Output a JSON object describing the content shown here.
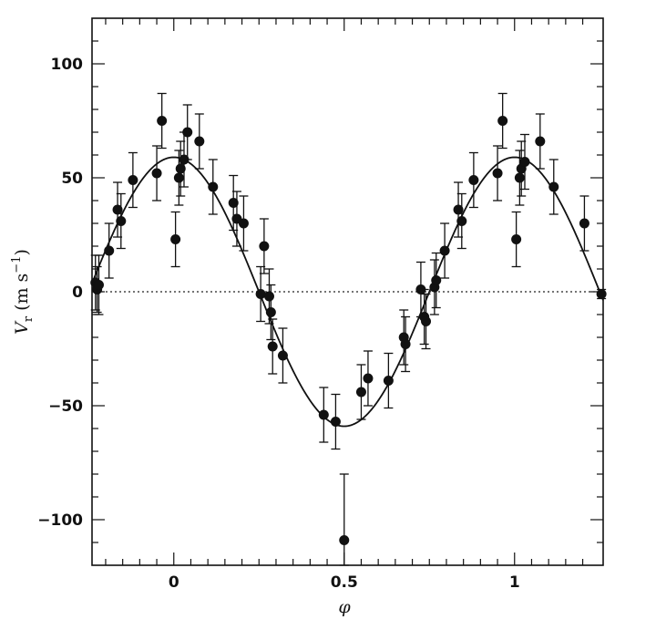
{
  "chart_data": {
    "type": "scatter",
    "xlabel": "φ",
    "ylabel": {
      "symbol": "V",
      "subscript": "r",
      "unit_open": " (m s",
      "unit_exp": "−1",
      "unit_close": ")"
    },
    "xlim": [
      -0.24,
      1.26
    ],
    "ylim": [
      -120,
      120
    ],
    "xticks": [
      0,
      0.5,
      1
    ],
    "xtick_labels": [
      "0",
      "0.5",
      "1"
    ],
    "yticks": [
      -100,
      -50,
      0,
      50,
      100
    ],
    "ytick_labels": [
      "−100",
      "−50",
      "0",
      "50",
      "100"
    ],
    "grid": false,
    "legend": "none",
    "zero_line": {
      "y": 0,
      "style": "dotted"
    },
    "model_curve": {
      "type": "sine",
      "amplitude": 59,
      "offset": 0,
      "period": 1,
      "phase_zero_crossing": 0.25,
      "style": "solid"
    },
    "series": [
      {
        "errorbars": true,
        "points": [
          {
            "x": -0.23,
            "y": 4,
            "err": 12
          },
          {
            "x": -0.225,
            "y": 1,
            "err": 10
          },
          {
            "x": -0.22,
            "y": 3,
            "err": 13
          },
          {
            "x": -0.19,
            "y": 18,
            "err": 12
          },
          {
            "x": -0.165,
            "y": 36,
            "err": 12
          },
          {
            "x": -0.155,
            "y": 31,
            "err": 12
          },
          {
            "x": -0.12,
            "y": 49,
            "err": 12
          },
          {
            "x": -0.05,
            "y": 52,
            "err": 12
          },
          {
            "x": -0.035,
            "y": 75,
            "err": 12
          },
          {
            "x": 0.005,
            "y": 23,
            "err": 12
          },
          {
            "x": 0.015,
            "y": 50,
            "err": 12
          },
          {
            "x": 0.02,
            "y": 54,
            "err": 12
          },
          {
            "x": 0.03,
            "y": 58,
            "err": 12
          },
          {
            "x": 0.04,
            "y": 70,
            "err": 12
          },
          {
            "x": 0.075,
            "y": 66,
            "err": 12
          },
          {
            "x": 0.115,
            "y": 46,
            "err": 12
          },
          {
            "x": 0.175,
            "y": 39,
            "err": 12
          },
          {
            "x": 0.185,
            "y": 32,
            "err": 12
          },
          {
            "x": 0.205,
            "y": 30,
            "err": 12
          },
          {
            "x": 0.255,
            "y": -1,
            "err": 12
          },
          {
            "x": 0.265,
            "y": 20,
            "err": 12
          },
          {
            "x": 0.28,
            "y": -2,
            "err": 12
          },
          {
            "x": 0.285,
            "y": -9,
            "err": 12
          },
          {
            "x": 0.29,
            "y": -24,
            "err": 12
          },
          {
            "x": 0.32,
            "y": -28,
            "err": 12
          },
          {
            "x": 0.44,
            "y": -54,
            "err": 12
          },
          {
            "x": 0.475,
            "y": -57,
            "err": 12
          },
          {
            "x": 0.5,
            "y": -109,
            "err": 29
          },
          {
            "x": 0.55,
            "y": -44,
            "err": 12
          },
          {
            "x": 0.57,
            "y": -38,
            "err": 12
          },
          {
            "x": 0.63,
            "y": -39,
            "err": 12
          },
          {
            "x": 0.675,
            "y": -20,
            "err": 12
          },
          {
            "x": 0.68,
            "y": -23,
            "err": 12
          },
          {
            "x": 0.725,
            "y": 1,
            "err": 12
          },
          {
            "x": 0.735,
            "y": -11,
            "err": 12
          },
          {
            "x": 0.74,
            "y": -13,
            "err": 12
          },
          {
            "x": 0.765,
            "y": 2,
            "err": 12
          },
          {
            "x": 0.77,
            "y": 5,
            "err": 12
          },
          {
            "x": 0.795,
            "y": 18,
            "err": 12
          },
          {
            "x": 0.835,
            "y": 36,
            "err": 12
          },
          {
            "x": 0.845,
            "y": 31,
            "err": 12
          },
          {
            "x": 0.88,
            "y": 49,
            "err": 12
          },
          {
            "x": 0.95,
            "y": 52,
            "err": 12
          },
          {
            "x": 0.965,
            "y": 75,
            "err": 12
          },
          {
            "x": 1.005,
            "y": 23,
            "err": 12
          },
          {
            "x": 1.015,
            "y": 50,
            "err": 12
          },
          {
            "x": 1.02,
            "y": 54,
            "err": 12
          },
          {
            "x": 1.03,
            "y": 57,
            "err": 12
          },
          {
            "x": 1.075,
            "y": 66,
            "err": 12
          },
          {
            "x": 1.115,
            "y": 46,
            "err": 12
          },
          {
            "x": 1.205,
            "y": 30,
            "err": 12
          },
          {
            "x": 1.255,
            "y": -1,
            "err": 2
          }
        ]
      }
    ]
  }
}
